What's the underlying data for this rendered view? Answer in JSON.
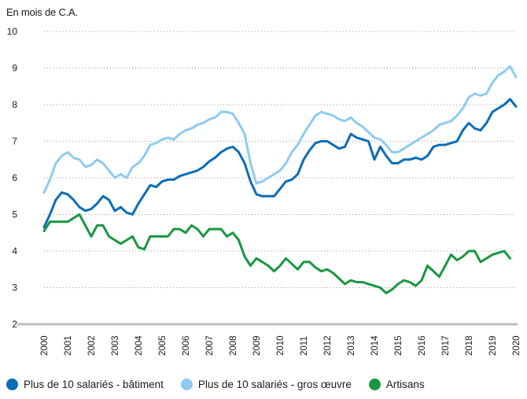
{
  "chart_data": {
    "type": "line",
    "title": "",
    "ylabel": "En mois de C.A.",
    "xlabel": "",
    "ylim": [
      2,
      10
    ],
    "xlim": [
      2000,
      2020
    ],
    "yticks": [
      "2",
      "3",
      "4",
      "5",
      "6",
      "7",
      "8",
      "9",
      "10"
    ],
    "xticks": [
      "2000",
      "2001",
      "2002",
      "2003",
      "2004",
      "2005",
      "2006",
      "2007",
      "2008",
      "2009",
      "2010",
      "2011",
      "2012",
      "2013",
      "2014",
      "2015",
      "2016",
      "2017",
      "2018",
      "2019",
      "2020"
    ],
    "grid": "horizontal dotted",
    "legend_position": "bottom",
    "series": [
      {
        "name": "Plus de 10 salariés - bâtiment",
        "color": "#0b6cb8",
        "x": [
          2000,
          2000.25,
          2000.5,
          2000.75,
          2001,
          2001.25,
          2001.5,
          2001.75,
          2002,
          2002.25,
          2002.5,
          2002.75,
          2003,
          2003.25,
          2003.5,
          2003.75,
          2004,
          2004.25,
          2004.5,
          2004.75,
          2005,
          2005.25,
          2005.5,
          2005.75,
          2006,
          2006.25,
          2006.5,
          2006.75,
          2007,
          2007.25,
          2007.5,
          2007.75,
          2008,
          2008.25,
          2008.5,
          2008.75,
          2009,
          2009.25,
          2009.5,
          2009.75,
          2010,
          2010.25,
          2010.5,
          2010.75,
          2011,
          2011.25,
          2011.5,
          2011.75,
          2012,
          2012.25,
          2012.5,
          2012.75,
          2013,
          2013.25,
          2013.5,
          2013.75,
          2014,
          2014.25,
          2014.5,
          2014.75,
          2015,
          2015.25,
          2015.5,
          2015.75,
          2016,
          2016.25,
          2016.5,
          2016.75,
          2017,
          2017.25,
          2017.5,
          2017.75,
          2018,
          2018.25,
          2018.5,
          2018.75,
          2019,
          2019.25,
          2019.5,
          2019.75,
          2020
        ],
        "values": [
          4.65,
          5.0,
          5.4,
          5.6,
          5.55,
          5.4,
          5.2,
          5.1,
          5.15,
          5.3,
          5.5,
          5.4,
          5.1,
          5.2,
          5.05,
          5.0,
          5.3,
          5.55,
          5.8,
          5.75,
          5.9,
          5.95,
          5.95,
          6.05,
          6.1,
          6.15,
          6.2,
          6.3,
          6.45,
          6.55,
          6.7,
          6.8,
          6.85,
          6.7,
          6.4,
          5.9,
          5.55,
          5.5,
          5.5,
          5.5,
          5.7,
          5.9,
          5.95,
          6.1,
          6.5,
          6.75,
          6.95,
          7.0,
          7.0,
          6.9,
          6.8,
          6.85,
          7.2,
          7.1,
          7.05,
          7.0,
          6.5,
          6.85,
          6.6,
          6.4,
          6.4,
          6.5,
          6.5,
          6.55,
          6.5,
          6.6,
          6.85,
          6.9,
          6.9,
          6.95,
          7.0,
          7.3,
          7.5,
          7.35,
          7.3,
          7.5,
          7.8,
          7.9,
          8.0,
          8.15,
          7.95
        ]
      },
      {
        "name": "Plus de 10 salariés - gros œuvre",
        "color": "#8ecbf0",
        "x": [
          2000,
          2000.25,
          2000.5,
          2000.75,
          2001,
          2001.25,
          2001.5,
          2001.75,
          2002,
          2002.25,
          2002.5,
          2002.75,
          2003,
          2003.25,
          2003.5,
          2003.75,
          2004,
          2004.25,
          2004.5,
          2004.75,
          2005,
          2005.25,
          2005.5,
          2005.75,
          2006,
          2006.25,
          2006.5,
          2006.75,
          2007,
          2007.25,
          2007.5,
          2007.75,
          2008,
          2008.25,
          2008.5,
          2008.75,
          2009,
          2009.25,
          2009.5,
          2009.75,
          2010,
          2010.25,
          2010.5,
          2010.75,
          2011,
          2011.25,
          2011.5,
          2011.75,
          2012,
          2012.25,
          2012.5,
          2012.75,
          2013,
          2013.25,
          2013.5,
          2013.75,
          2014,
          2014.25,
          2014.5,
          2014.75,
          2015,
          2015.25,
          2015.5,
          2015.75,
          2016,
          2016.25,
          2016.5,
          2016.75,
          2017,
          2017.25,
          2017.5,
          2017.75,
          2018,
          2018.25,
          2018.5,
          2018.75,
          2019,
          2019.25,
          2019.5,
          2019.75,
          2020
        ],
        "values": [
          5.6,
          5.95,
          6.4,
          6.6,
          6.7,
          6.55,
          6.5,
          6.3,
          6.35,
          6.5,
          6.4,
          6.2,
          6.0,
          6.1,
          6.0,
          6.3,
          6.4,
          6.6,
          6.9,
          6.95,
          7.05,
          7.1,
          7.05,
          7.2,
          7.3,
          7.35,
          7.45,
          7.5,
          7.6,
          7.65,
          7.8,
          7.8,
          7.75,
          7.5,
          7.2,
          6.4,
          5.85,
          5.9,
          6.0,
          6.1,
          6.2,
          6.4,
          6.7,
          6.9,
          7.2,
          7.45,
          7.7,
          7.8,
          7.75,
          7.7,
          7.6,
          7.55,
          7.65,
          7.5,
          7.4,
          7.25,
          7.1,
          7.05,
          6.9,
          6.7,
          6.7,
          6.8,
          6.9,
          7.0,
          7.1,
          7.2,
          7.3,
          7.45,
          7.5,
          7.55,
          7.7,
          7.9,
          8.2,
          8.3,
          8.25,
          8.3,
          8.6,
          8.8,
          8.9,
          9.05,
          8.75
        ]
      },
      {
        "name": "Artisans",
        "color": "#1a9641",
        "x": [
          2000,
          2000.25,
          2000.5,
          2000.75,
          2001,
          2001.25,
          2001.5,
          2001.75,
          2002,
          2002.25,
          2002.5,
          2002.75,
          2003,
          2003.25,
          2003.5,
          2003.75,
          2004,
          2004.25,
          2004.5,
          2004.75,
          2005,
          2005.25,
          2005.5,
          2005.75,
          2006,
          2006.25,
          2006.5,
          2006.75,
          2007,
          2007.25,
          2007.5,
          2007.75,
          2008,
          2008.25,
          2008.5,
          2008.75,
          2009,
          2009.25,
          2009.5,
          2009.75,
          2010,
          2010.25,
          2010.5,
          2010.75,
          2011,
          2011.25,
          2011.5,
          2011.75,
          2012,
          2012.25,
          2012.5,
          2012.75,
          2013,
          2013.25,
          2013.5,
          2013.75,
          2014,
          2014.25,
          2014.5,
          2014.75,
          2015,
          2015.25,
          2015.5,
          2015.75,
          2016,
          2016.25,
          2016.5,
          2016.75,
          2017,
          2017.25,
          2017.5,
          2017.75,
          2018,
          2018.25,
          2018.5,
          2018.75,
          2019,
          2019.25,
          2019.5,
          2019.75
        ],
        "values": [
          4.55,
          4.8,
          4.8,
          4.8,
          4.8,
          4.9,
          5.0,
          4.7,
          4.4,
          4.7,
          4.7,
          4.4,
          4.3,
          4.2,
          4.3,
          4.4,
          4.1,
          4.05,
          4.4,
          4.4,
          4.4,
          4.4,
          4.6,
          4.6,
          4.5,
          4.7,
          4.6,
          4.4,
          4.6,
          4.6,
          4.6,
          4.4,
          4.5,
          4.3,
          3.85,
          3.6,
          3.8,
          3.7,
          3.6,
          3.45,
          3.6,
          3.8,
          3.65,
          3.5,
          3.7,
          3.7,
          3.55,
          3.45,
          3.5,
          3.4,
          3.25,
          3.1,
          3.2,
          3.15,
          3.15,
          3.1,
          3.05,
          3.0,
          2.85,
          2.95,
          3.1,
          3.2,
          3.15,
          3.05,
          3.2,
          3.6,
          3.45,
          3.3,
          3.6,
          3.9,
          3.75,
          3.85,
          4.0,
          4.0,
          3.7,
          3.8,
          3.9,
          3.95,
          4.0,
          3.8
        ]
      }
    ]
  },
  "legend": [
    {
      "label": "Plus de 10 salariés - bâtiment",
      "color": "#0b6cb8"
    },
    {
      "label": "Plus de 10 salariés - gros œuvre",
      "color": "#8ecbf0"
    },
    {
      "label": "Artisans",
      "color": "#1a9641"
    }
  ]
}
